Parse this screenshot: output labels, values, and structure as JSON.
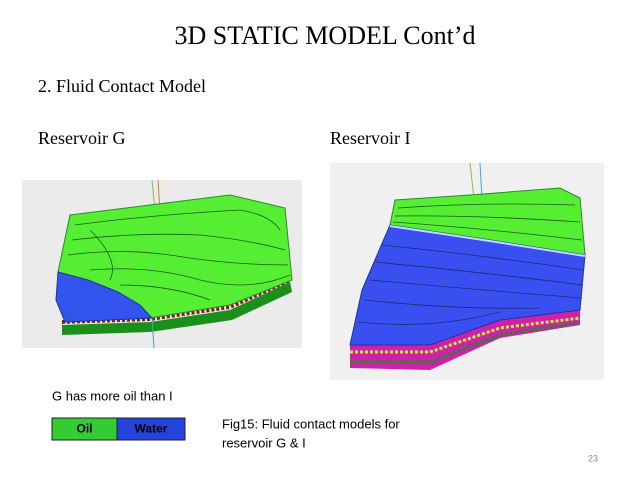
{
  "slide": {
    "title": "3D STATIC MODEL Cont’d",
    "subtitle": "2. Fluid Contact Model",
    "panels": [
      {
        "label": "Reservoir G"
      },
      {
        "label": "Reservoir I"
      }
    ],
    "note": "G has more oil than  I",
    "legend": [
      "Oil",
      "Water"
    ],
    "caption": {
      "lines": [
        "Fig15: Fluid contact models for",
        "reservoir G & I"
      ]
    },
    "page_number": "23"
  }
}
